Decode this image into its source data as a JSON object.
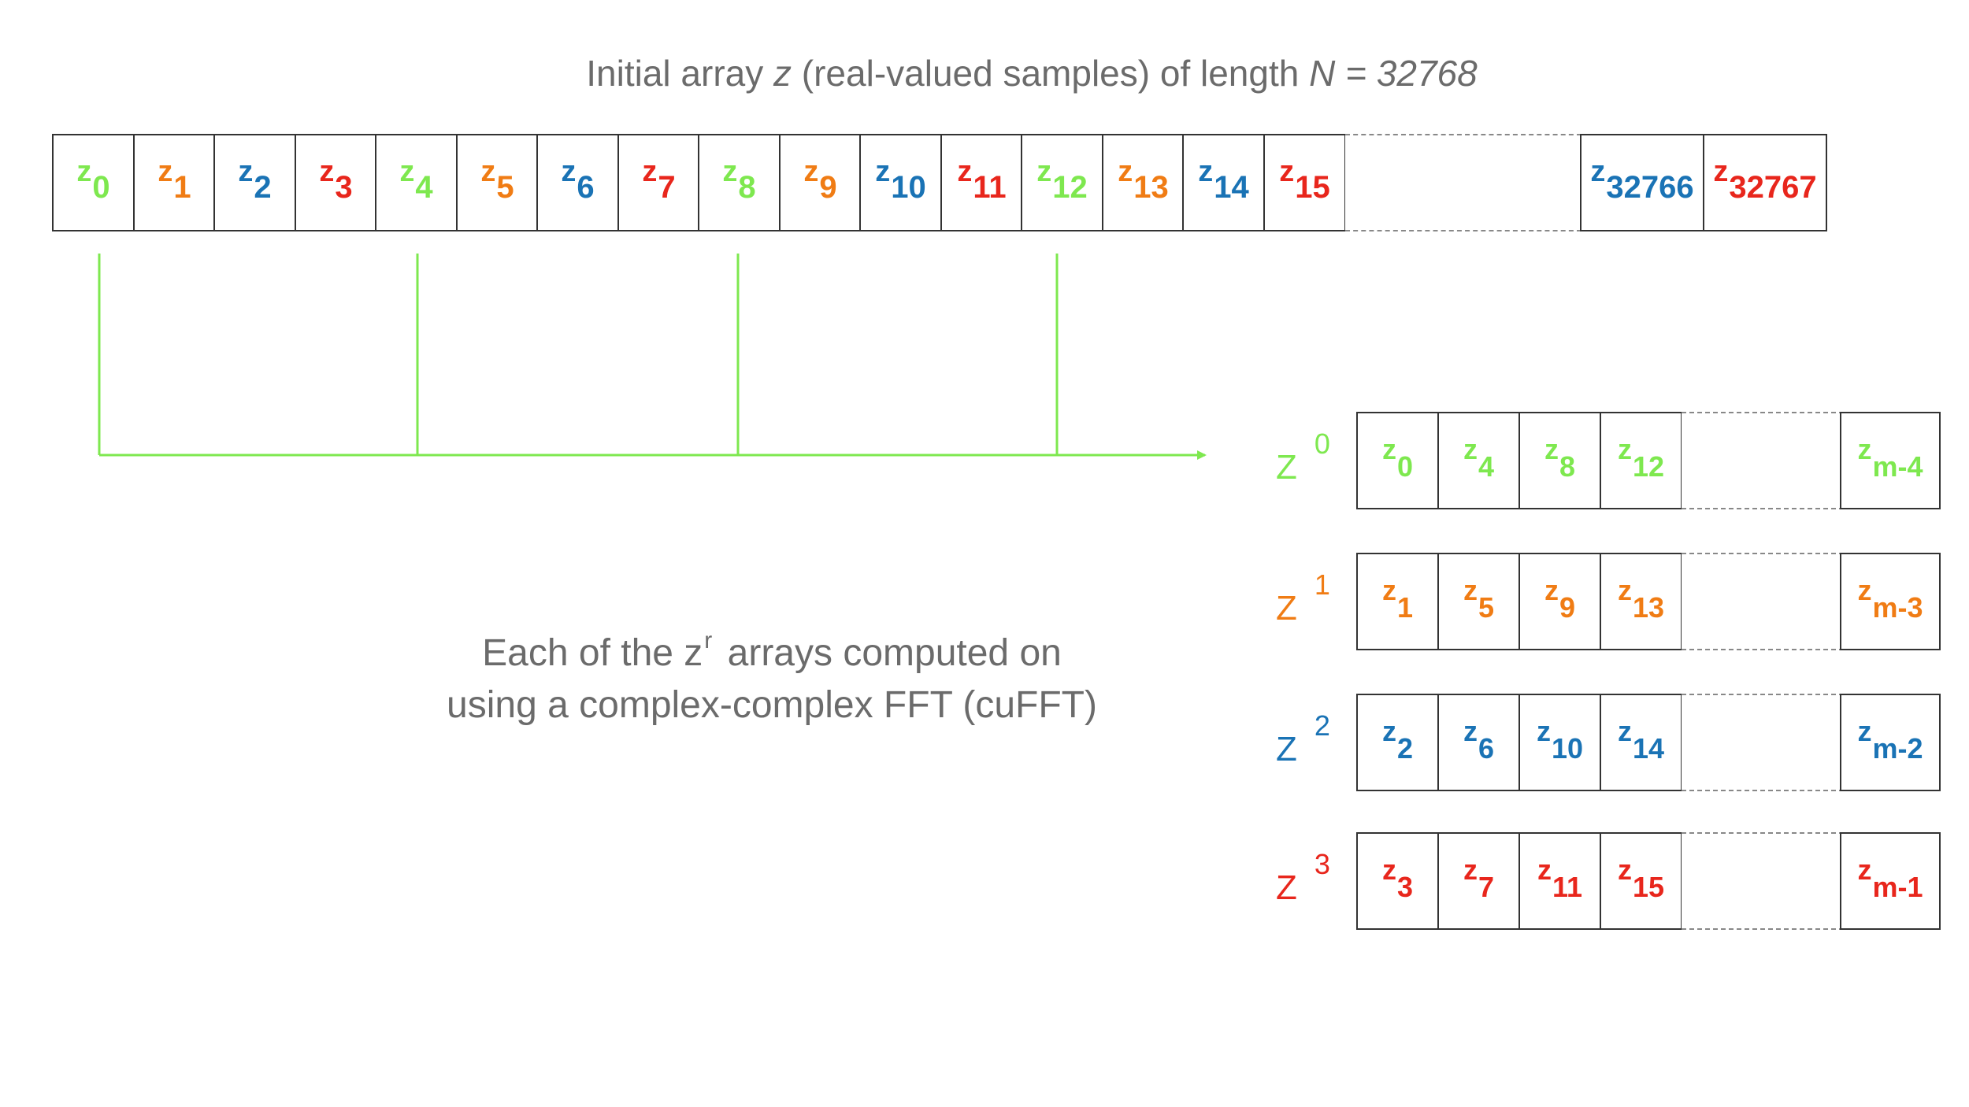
{
  "title": {
    "prefix": "Initial array ",
    "var_z": "z",
    "middle": " (real-valued samples) of length ",
    "var_n": "N",
    "equals": " = ",
    "n_value": "32768"
  },
  "colors": {
    "green": "#7ee84f",
    "orange": "#f07c14",
    "blue": "#1a73b5",
    "red": "#e8261c",
    "gray": "#6b6b6b"
  },
  "initial_array": {
    "cells": [
      {
        "z": "z",
        "sub": "0",
        "color": "green"
      },
      {
        "z": "z",
        "sub": "1",
        "color": "orange"
      },
      {
        "z": "z",
        "sub": "2",
        "color": "blue"
      },
      {
        "z": "z",
        "sub": "3",
        "color": "red"
      },
      {
        "z": "z",
        "sub": "4",
        "color": "green"
      },
      {
        "z": "z",
        "sub": "5",
        "color": "orange"
      },
      {
        "z": "z",
        "sub": "6",
        "color": "blue"
      },
      {
        "z": "z",
        "sub": "7",
        "color": "red"
      },
      {
        "z": "z",
        "sub": "8",
        "color": "green"
      },
      {
        "z": "z",
        "sub": "9",
        "color": "orange"
      },
      {
        "z": "z",
        "sub": "10",
        "color": "blue"
      },
      {
        "z": "z",
        "sub": "11",
        "color": "red"
      },
      {
        "z": "z",
        "sub": "12",
        "color": "green"
      },
      {
        "z": "z",
        "sub": "13",
        "color": "orange"
      },
      {
        "z": "z",
        "sub": "14",
        "color": "blue"
      },
      {
        "z": "z",
        "sub": "15",
        "color": "red"
      }
    ],
    "tail": [
      {
        "z": "z",
        "sub": "32766",
        "color": "blue"
      },
      {
        "z": "z",
        "sub": "32767",
        "color": "red"
      }
    ]
  },
  "sub_arrays": [
    {
      "label": "Z",
      "sup": "0",
      "color": "green",
      "cells": [
        "0",
        "4",
        "8",
        "12"
      ],
      "last": "m-4"
    },
    {
      "label": "Z",
      "sup": "1",
      "color": "orange",
      "cells": [
        "1",
        "5",
        "9",
        "13"
      ],
      "last": "m-3"
    },
    {
      "label": "Z",
      "sup": "2",
      "color": "blue",
      "cells": [
        "2",
        "6",
        "10",
        "14"
      ],
      "last": "m-2"
    },
    {
      "label": "Z",
      "sup": "3",
      "color": "red",
      "cells": [
        "3",
        "7",
        "11",
        "15"
      ],
      "last": "m-1"
    }
  ],
  "note": {
    "line1_prefix": "Each of the z",
    "line1_sup": "r",
    "line1_suffix": " arrays computed on",
    "line2": "using a complex-complex FFT (cuFFT)"
  }
}
